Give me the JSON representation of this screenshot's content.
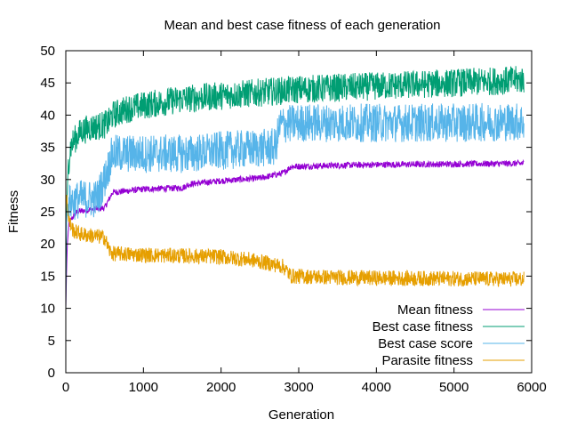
{
  "chart_data": {
    "type": "line",
    "title": "Mean and best case fitness of each generation",
    "xlabel": "Generation",
    "ylabel": "Fitness",
    "xlim": [
      0,
      6000
    ],
    "ylim": [
      0,
      50
    ],
    "xticks": [
      "0",
      "1000",
      "2000",
      "3000",
      "4000",
      "5000",
      "6000"
    ],
    "yticks": [
      "0",
      "5",
      "10",
      "15",
      "20",
      "25",
      "30",
      "35",
      "40",
      "45",
      "50"
    ],
    "grid": false,
    "legend_position": "bottom-right",
    "series": [
      {
        "name": "Mean fitness",
        "color": "#9400d3",
        "points": [
          [
            0,
            10
          ],
          [
            10,
            16
          ],
          [
            20,
            20
          ],
          [
            40,
            23
          ],
          [
            80,
            24
          ],
          [
            150,
            25
          ],
          [
            300,
            25.3
          ],
          [
            500,
            25.6
          ],
          [
            560,
            27
          ],
          [
            600,
            28
          ],
          [
            1000,
            28.5
          ],
          [
            1500,
            28.7
          ],
          [
            1600,
            29.3
          ],
          [
            2000,
            29.8
          ],
          [
            2500,
            30.2
          ],
          [
            2800,
            31
          ],
          [
            2900,
            32
          ],
          [
            3500,
            32.2
          ],
          [
            4000,
            32.3
          ],
          [
            5000,
            32.4
          ],
          [
            5900,
            32.5
          ]
        ],
        "noise": 0.5
      },
      {
        "name": "Best case fitness",
        "color": "#009e73",
        "points": [
          [
            0,
            10
          ],
          [
            10,
            25
          ],
          [
            30,
            32
          ],
          [
            60,
            35
          ],
          [
            100,
            36
          ],
          [
            200,
            37.5
          ],
          [
            300,
            38
          ],
          [
            500,
            38.5
          ],
          [
            560,
            39
          ],
          [
            600,
            40
          ],
          [
            800,
            41
          ],
          [
            1000,
            41.5
          ],
          [
            1500,
            42.5
          ],
          [
            2000,
            43
          ],
          [
            2500,
            43.5
          ],
          [
            3000,
            44
          ],
          [
            4000,
            44.5
          ],
          [
            5000,
            45
          ],
          [
            5900,
            45.5
          ]
        ],
        "noise": 2.2
      },
      {
        "name": "Best case score",
        "color": "#56b4e9",
        "points": [
          [
            0,
            20
          ],
          [
            20,
            26
          ],
          [
            60,
            26.5
          ],
          [
            200,
            27
          ],
          [
            400,
            27
          ],
          [
            500,
            30
          ],
          [
            550,
            32
          ],
          [
            600,
            34
          ],
          [
            1000,
            34
          ],
          [
            1600,
            34
          ],
          [
            2000,
            34.5
          ],
          [
            2700,
            35
          ],
          [
            2760,
            38.5
          ],
          [
            3000,
            38.8
          ],
          [
            4000,
            38.8
          ],
          [
            5000,
            38.8
          ],
          [
            5900,
            39
          ]
        ],
        "noise": 3
      },
      {
        "name": "Parasite fitness",
        "color": "#e69f00",
        "points": [
          [
            0,
            25
          ],
          [
            10,
            28
          ],
          [
            30,
            24
          ],
          [
            60,
            23
          ],
          [
            100,
            22
          ],
          [
            200,
            21.5
          ],
          [
            500,
            21
          ],
          [
            560,
            19
          ],
          [
            600,
            18.5
          ],
          [
            1000,
            18.3
          ],
          [
            2000,
            18
          ],
          [
            2400,
            17.5
          ],
          [
            2800,
            16.5
          ],
          [
            2900,
            15
          ],
          [
            3500,
            14.8
          ],
          [
            4000,
            14.7
          ],
          [
            5000,
            14.6
          ],
          [
            5900,
            14.5
          ]
        ],
        "noise": 1.2
      }
    ]
  }
}
